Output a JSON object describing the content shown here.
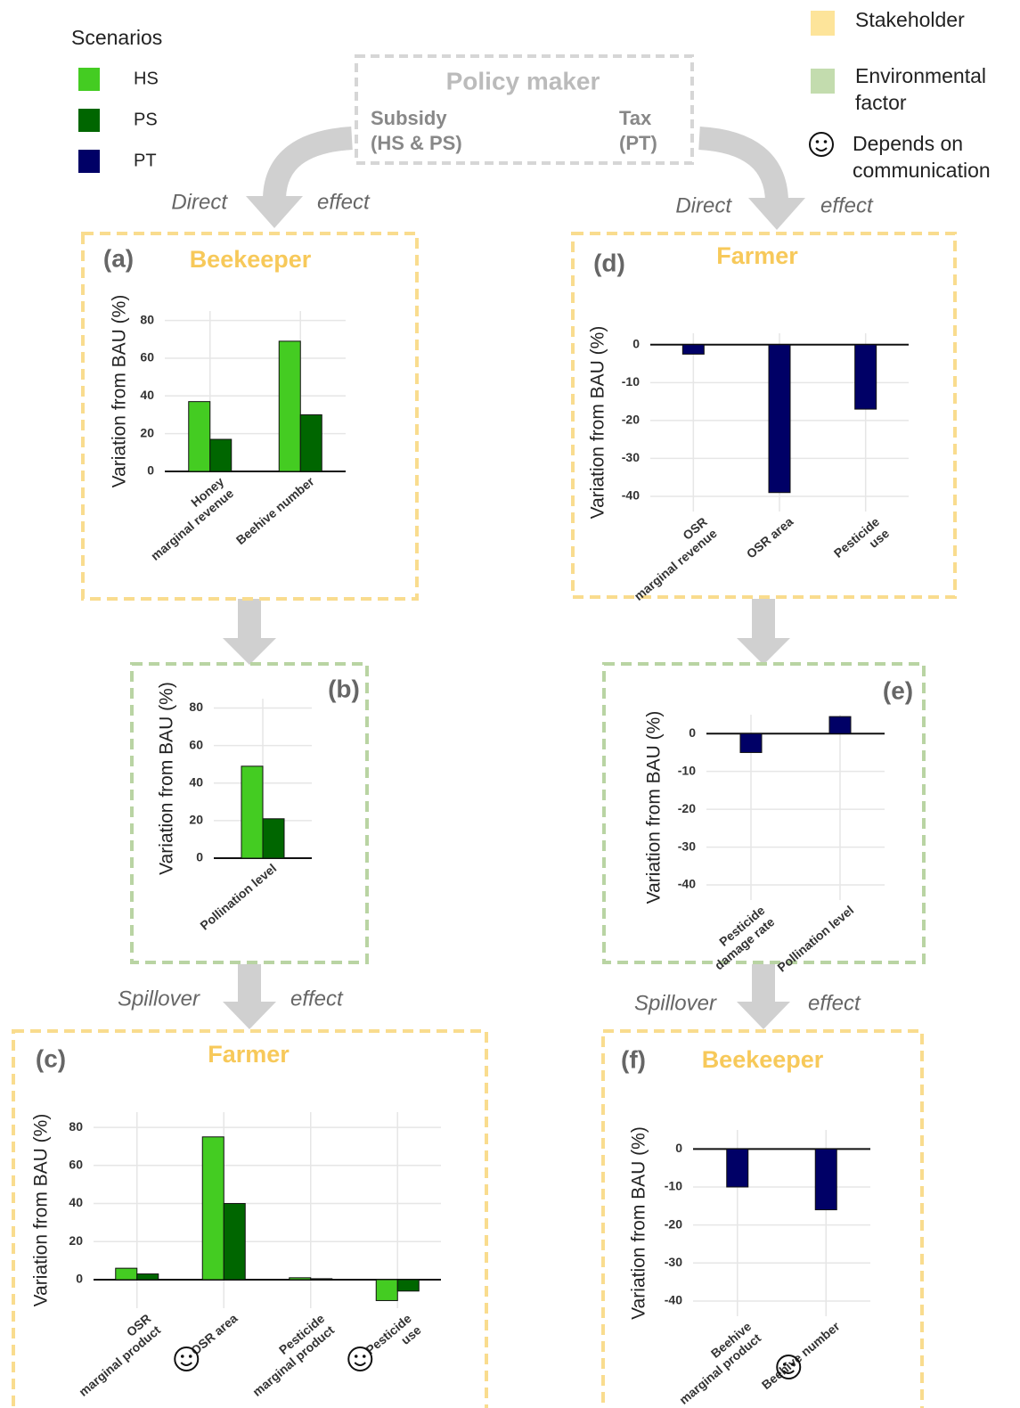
{
  "legend": {
    "title": "Scenarios",
    "items": [
      {
        "name": "HS",
        "color": "#44cc22"
      },
      {
        "name": "PS",
        "color": "#006600"
      },
      {
        "name": "PT",
        "color": "#000066"
      }
    ]
  },
  "key": [
    {
      "label": "Stakeholder",
      "color": "#fde49a"
    },
    {
      "label": "Environmental\nfactor",
      "color": "#c3dcae"
    },
    {
      "label": "Depends on\ncommunication"
    }
  ],
  "policy_maker": {
    "title": "Policy maker",
    "left": "Subsidy\n(HS & PS)",
    "right": "Tax\n(PT)"
  },
  "arrow_labels": [
    {
      "left": "Direct",
      "right": "effect"
    },
    {
      "left": "Direct",
      "right": "effect"
    },
    {
      "left": "Spillover",
      "right": "effect"
    },
    {
      "left": "Spillover",
      "right": "effect"
    }
  ],
  "chart_data": [
    {
      "type": "bar",
      "panel": "(a)",
      "title": "Beekeeper",
      "frame": "stakeholder",
      "y_label": "Variation from BAU (%)",
      "categories": [
        "Honey\nmarginal revenue",
        "Beehive number"
      ],
      "series": [
        {
          "scenario": 0,
          "values": [
            37,
            69
          ]
        },
        {
          "scenario": 1,
          "values": [
            17,
            30
          ]
        }
      ],
      "ylim": [
        0,
        85
      ],
      "yticks": [
        0,
        20,
        40,
        60,
        80
      ],
      "grid": true
    },
    {
      "type": "bar",
      "panel": "(d)",
      "title": "Farmer",
      "frame": "stakeholder",
      "y_label": "Variation from BAU (%)",
      "categories": [
        "OSR\nmarginal revenue",
        "OSR area",
        "Pesticide\nuse"
      ],
      "series": [
        {
          "scenario": 2,
          "values": [
            -2.5,
            -39,
            -17
          ]
        }
      ],
      "ylim": [
        -44,
        3
      ],
      "yticks": [
        0,
        -10,
        -20,
        -30,
        -40
      ],
      "grid": true
    },
    {
      "type": "bar",
      "panel": "(b)",
      "frame": "environmental",
      "y_label": "Variation from BAU (%)",
      "categories": [
        "Pollination level"
      ],
      "series": [
        {
          "scenario": 0,
          "values": [
            49
          ]
        },
        {
          "scenario": 1,
          "values": [
            21
          ]
        }
      ],
      "ylim": [
        0,
        85
      ],
      "yticks": [
        0,
        20,
        40,
        60,
        80
      ],
      "grid": true
    },
    {
      "type": "bar",
      "panel": "(e)",
      "frame": "environmental",
      "y_label": "Variation from BAU (%)",
      "categories": [
        "Pesticide\ndamage rate",
        "Pollination level"
      ],
      "series": [
        {
          "scenario": 2,
          "values": [
            -5,
            4.5
          ]
        }
      ],
      "ylim": [
        -44,
        5
      ],
      "yticks": [
        0,
        -10,
        -20,
        -30,
        -40
      ],
      "grid": true
    },
    {
      "type": "bar",
      "panel": "(c)",
      "title": "Farmer",
      "frame": "stakeholder",
      "y_label": "Variation from BAU (%)",
      "categories": [
        "OSR\nmarginal product",
        "OSR area",
        "Pesticide\nmarginal product",
        "Pesticide\nuse"
      ],
      "series": [
        {
          "scenario": 0,
          "values": [
            6,
            75,
            1,
            -11
          ]
        },
        {
          "scenario": 1,
          "values": [
            3,
            40,
            0.5,
            -6
          ]
        }
      ],
      "ylim": [
        -15,
        88
      ],
      "yticks": [
        0,
        20,
        40,
        60,
        80
      ],
      "grid": true,
      "communication": [
        1,
        3
      ]
    },
    {
      "type": "bar",
      "panel": "(f)",
      "title": "Beekeeper",
      "frame": "stakeholder",
      "y_label": "Variation from BAU (%)",
      "categories": [
        "Beehive\nmarginal product",
        "Beehive number"
      ],
      "series": [
        {
          "scenario": 2,
          "values": [
            -10,
            -16
          ]
        }
      ],
      "ylim": [
        -44,
        5
      ],
      "yticks": [
        0,
        -10,
        -20,
        -30,
        -40
      ],
      "grid": true,
      "communication": [
        1
      ]
    }
  ]
}
